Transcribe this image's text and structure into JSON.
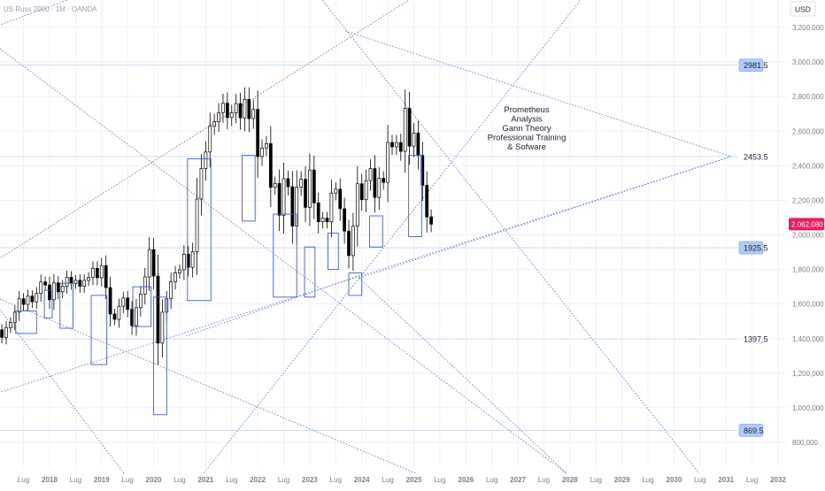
{
  "header": {
    "symbol_line": "US Russ 2000 · 1M · OANDA"
  },
  "currency_button": "USD",
  "annotation": {
    "lines": [
      "Prometheus",
      "Analysis",
      "Gann Theory",
      "Professional Training",
      "& Sofware"
    ]
  },
  "colors": {
    "background": "#ffffff",
    "grid": "#eef1f6",
    "trendline": "#5b7fe0",
    "red_line": "#e05555",
    "candle_up": "#ffffff",
    "candle_down": "#000000",
    "box_stroke": "#3c5fd0",
    "label_box_fill": "#aecbfa",
    "label_text": "#1a1f36",
    "axis_text": "#7a7f8c",
    "price_badge": "#e91e63"
  },
  "chart_data": {
    "type": "candlestick",
    "title": "",
    "ylim": [
      720000,
      3300000
    ],
    "xlim": [
      2017.0,
      2032.2
    ],
    "y_ticks": [
      800000,
      1000000,
      1200000,
      1400000,
      1600000,
      1800000,
      2000000,
      2200000,
      2400000,
      2600000,
      2800000,
      3000000,
      3200000
    ],
    "y_tick_labels": [
      "800,000",
      "1,000,000",
      "1,200,000",
      "1,400,000",
      "1,600,000",
      "1,800,000",
      "2,000,000",
      "2,200,000",
      "2,400,000",
      "2,600,000",
      "2,800,000",
      "3,000,000",
      "3,200,000"
    ],
    "x_ticks": [
      2017.5,
      2018,
      2018.5,
      2019,
      2019.5,
      2020,
      2020.5,
      2021,
      2021.5,
      2022,
      2022.5,
      2023,
      2023.5,
      2024,
      2024.5,
      2025,
      2025.5,
      2026,
      2026.5,
      2027,
      2027.5,
      2028,
      2028.5,
      2029,
      2029.5,
      2030,
      2030.5,
      2031,
      2031.5,
      2032
    ],
    "x_tick_labels": [
      "Lug",
      "2018",
      "Lug",
      "2019",
      "Lug",
      "2020",
      "Lug",
      "2021",
      "Lug",
      "2022",
      "Lug",
      "2023",
      "Lug",
      "2024",
      "Lug",
      "2025",
      "Lug",
      "2026",
      "Lug",
      "2027",
      "Lug",
      "2028",
      "Lug",
      "2029",
      "Lug",
      "2030",
      "Lug",
      "2031",
      "Lug",
      "2032"
    ],
    "level_labels": [
      {
        "value": 2981.5,
        "text": "2981.5",
        "level": 2981500,
        "boxed": true
      },
      {
        "value": 2453.5,
        "text": "2453.5",
        "level": 2453500,
        "boxed": false
      },
      {
        "value": 1925.5,
        "text": "1925.5",
        "level": 1925500,
        "boxed": true
      },
      {
        "value": 1397.5,
        "text": "1397.5",
        "level": 1397500,
        "boxed": false
      },
      {
        "value": 869.5,
        "text": "869.5",
        "level": 869500,
        "boxed": true
      }
    ],
    "last_price": {
      "value": 2062080,
      "text": "2,062,080"
    },
    "price_anchor": {
      "t": 2018.0,
      "close": 1460000
    },
    "monthly_returns": [
      0.02,
      -0.03,
      0.04,
      0.02,
      0.04,
      0.05,
      -0.02,
      0.03,
      -0.02,
      0.03,
      0.04,
      -0.01,
      -0.05,
      0.06,
      -0.03,
      0.02,
      0.03,
      -0.02,
      0.01,
      -0.02,
      0.02,
      0.01,
      0.03,
      -0.03,
      0.04,
      -0.07,
      -0.09,
      -0.02,
      0.05,
      0.03,
      -0.04,
      -0.06,
      0.07,
      0.05,
      0.06,
      0.09,
      -0.08,
      -0.22,
      0.13,
      0.05,
      0.06,
      0.03,
      0.01,
      0.05,
      -0.04,
      0.05,
      0.16,
      0.08,
      0.04,
      0.06,
      0.01,
      0.02,
      0.02,
      -0.03,
      0.01,
      0.02,
      -0.03,
      0.04,
      -0.04,
      0.02,
      -0.1,
      0.02,
      0.01,
      -0.1,
      0.01,
      -0.08,
      0.1,
      -0.02,
      -0.1,
      0.11,
      0.02,
      -0.07,
      0.1,
      -0.08,
      -0.05,
      0.01,
      -0.01,
      0.08,
      0.01,
      -0.05,
      -0.06,
      -0.07,
      0.09,
      0.12,
      -0.04,
      0.05,
      0.03,
      -0.07,
      0.05,
      -0.01,
      0.1,
      -0.01,
      0.01,
      -0.02,
      0.1,
      -0.08,
      0.03,
      -0.05,
      -0.07,
      -0.08,
      -0.02
    ]
  }
}
